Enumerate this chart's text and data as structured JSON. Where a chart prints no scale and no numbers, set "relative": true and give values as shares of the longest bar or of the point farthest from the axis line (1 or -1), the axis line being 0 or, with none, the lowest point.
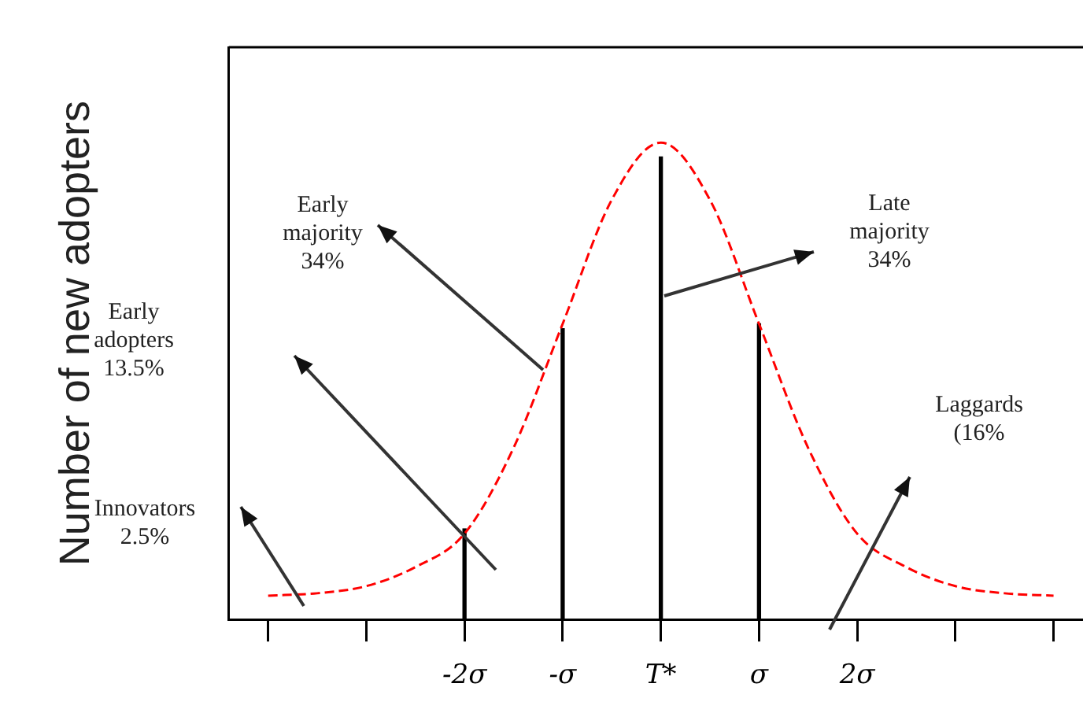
{
  "chart_data": {
    "type": "line",
    "ylabel": "Number of new adopters",
    "relative": true,
    "xlim": [
      -4.4,
      4.3
    ],
    "xticks": [
      {
        "value": -4,
        "label": null
      },
      {
        "value": -3,
        "label": null
      },
      {
        "value": -2,
        "label": "-2σ"
      },
      {
        "value": -1,
        "label": "-σ"
      },
      {
        "value": 0,
        "label": "T*"
      },
      {
        "value": 1,
        "label": "σ"
      },
      {
        "value": 2,
        "label": "2σ"
      },
      {
        "value": 3,
        "label": null
      },
      {
        "value": 4,
        "label": null
      }
    ],
    "series": [
      {
        "color": "#ff0000",
        "line_style": "dashed",
        "marker": "none",
        "x": [
          -4,
          -3.5,
          -3,
          -2.5,
          -2,
          -1.5,
          -1,
          -0.5,
          0,
          0.5,
          1,
          1.5,
          2,
          2.5,
          3,
          3.5,
          4
        ],
        "values": [
          0.05,
          0.055,
          0.07,
          0.11,
          0.18,
          0.36,
          0.62,
          0.88,
          1,
          0.88,
          0.62,
          0.36,
          0.18,
          0.11,
          0.07,
          0.055,
          0.05
        ]
      },
      {
        "type": "bar",
        "color": "#000000",
        "x": [
          -2,
          -1,
          0,
          1
        ],
        "values": [
          0.19,
          0.61,
          0.97,
          0.62
        ]
      }
    ],
    "annotations": [
      "Innovators\n2.5%",
      "Early\nadopters\n13.5%",
      "Early\nmajority\n34%",
      "Late\nmajority\n34%",
      "Laggards\n(16%"
    ],
    "grid": false,
    "legend": false
  }
}
